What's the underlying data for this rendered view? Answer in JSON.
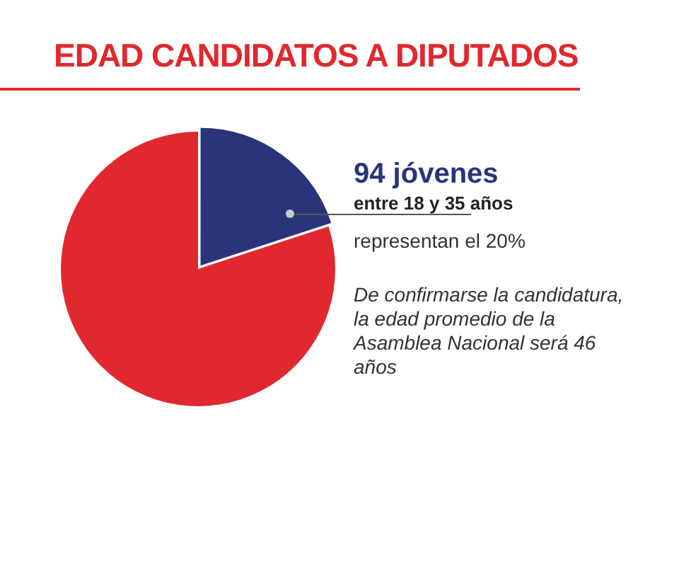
{
  "chart_data": {
    "type": "pie",
    "title": "EDAD CANDIDATOS A DIPUTADOS",
    "categories": [
      null,
      null
    ],
    "values": [
      20,
      80
    ],
    "colors": [
      "#29347a",
      "#e0282e"
    ],
    "legend": false,
    "annotations": [
      "94 jóvenes",
      "entre 18 y 35 años",
      "representan el 20%",
      "De confirmarse la candidatura, la edad promedio de la Asamblea Nacional será 46 años"
    ]
  }
}
